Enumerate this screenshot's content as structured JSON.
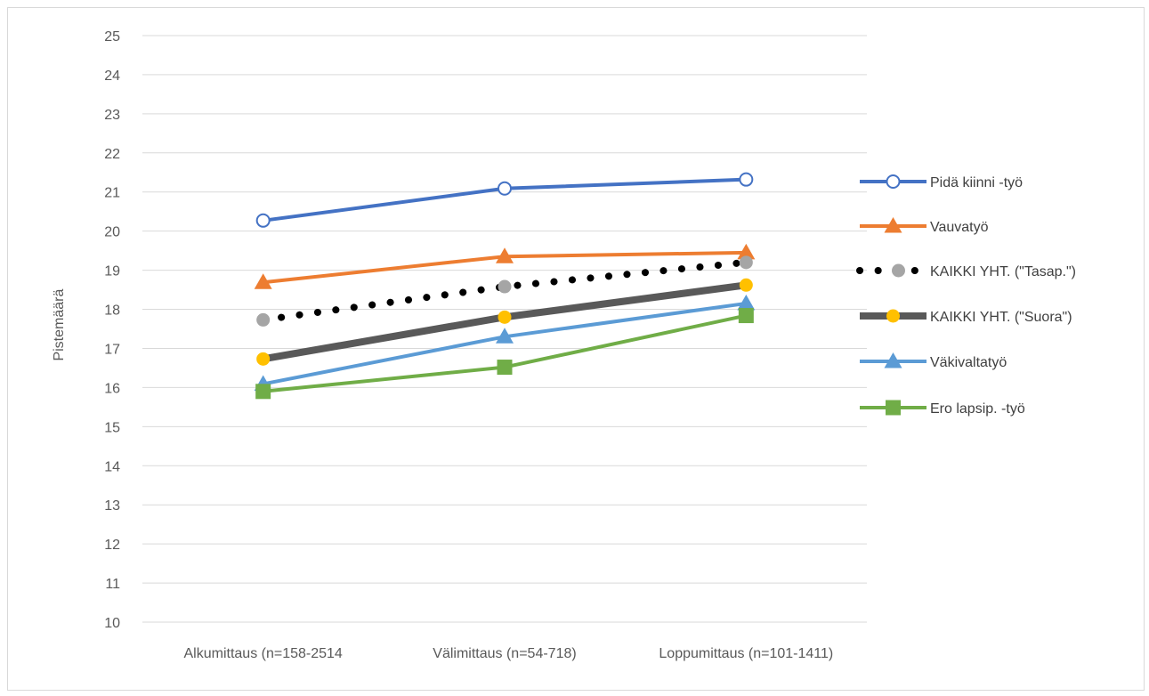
{
  "chart_data": {
    "type": "line",
    "title": "",
    "xlabel": "",
    "ylabel": "Pistemäärä",
    "ylim": [
      10,
      25
    ],
    "yticks": [
      10,
      11,
      12,
      13,
      14,
      15,
      16,
      17,
      18,
      19,
      20,
      21,
      22,
      23,
      24,
      25
    ],
    "categories": [
      "Alkumittaus (n=158-2514",
      "Välimittaus (n=54-718)",
      "Loppumittaus (n=101-1411)"
    ],
    "grid": true,
    "legend_position": "right",
    "series": [
      {
        "name": "Pidä kiinni -työ",
        "values": [
          20.27,
          21.09,
          21.32
        ],
        "color": "#4472C4",
        "line": "solid",
        "marker": "open-circle"
      },
      {
        "name": "Vauvatyö",
        "values": [
          18.69,
          19.35,
          19.45
        ],
        "color": "#ED7D31",
        "line": "solid",
        "marker": "triangle"
      },
      {
        "name": "KAIKKI YHT. (\"Tasap.\")",
        "values": [
          17.73,
          18.58,
          19.2
        ],
        "color": "#000000",
        "marker_color": "#A5A5A5",
        "line": "dotted",
        "marker": "circle"
      },
      {
        "name": "KAIKKI YHT. (\"Suora\")",
        "values": [
          16.73,
          17.8,
          18.62
        ],
        "color": "#595959",
        "marker_color": "#FFC000",
        "line": "thick",
        "marker": "circle"
      },
      {
        "name": "Väkivaltatyö",
        "values": [
          16.09,
          17.3,
          18.15
        ],
        "color": "#5B9BD5",
        "line": "solid",
        "marker": "triangle"
      },
      {
        "name": "Ero lapsip. -työ",
        "values": [
          15.9,
          16.52,
          17.84
        ],
        "color": "#70AD47",
        "line": "solid",
        "marker": "square"
      }
    ]
  }
}
